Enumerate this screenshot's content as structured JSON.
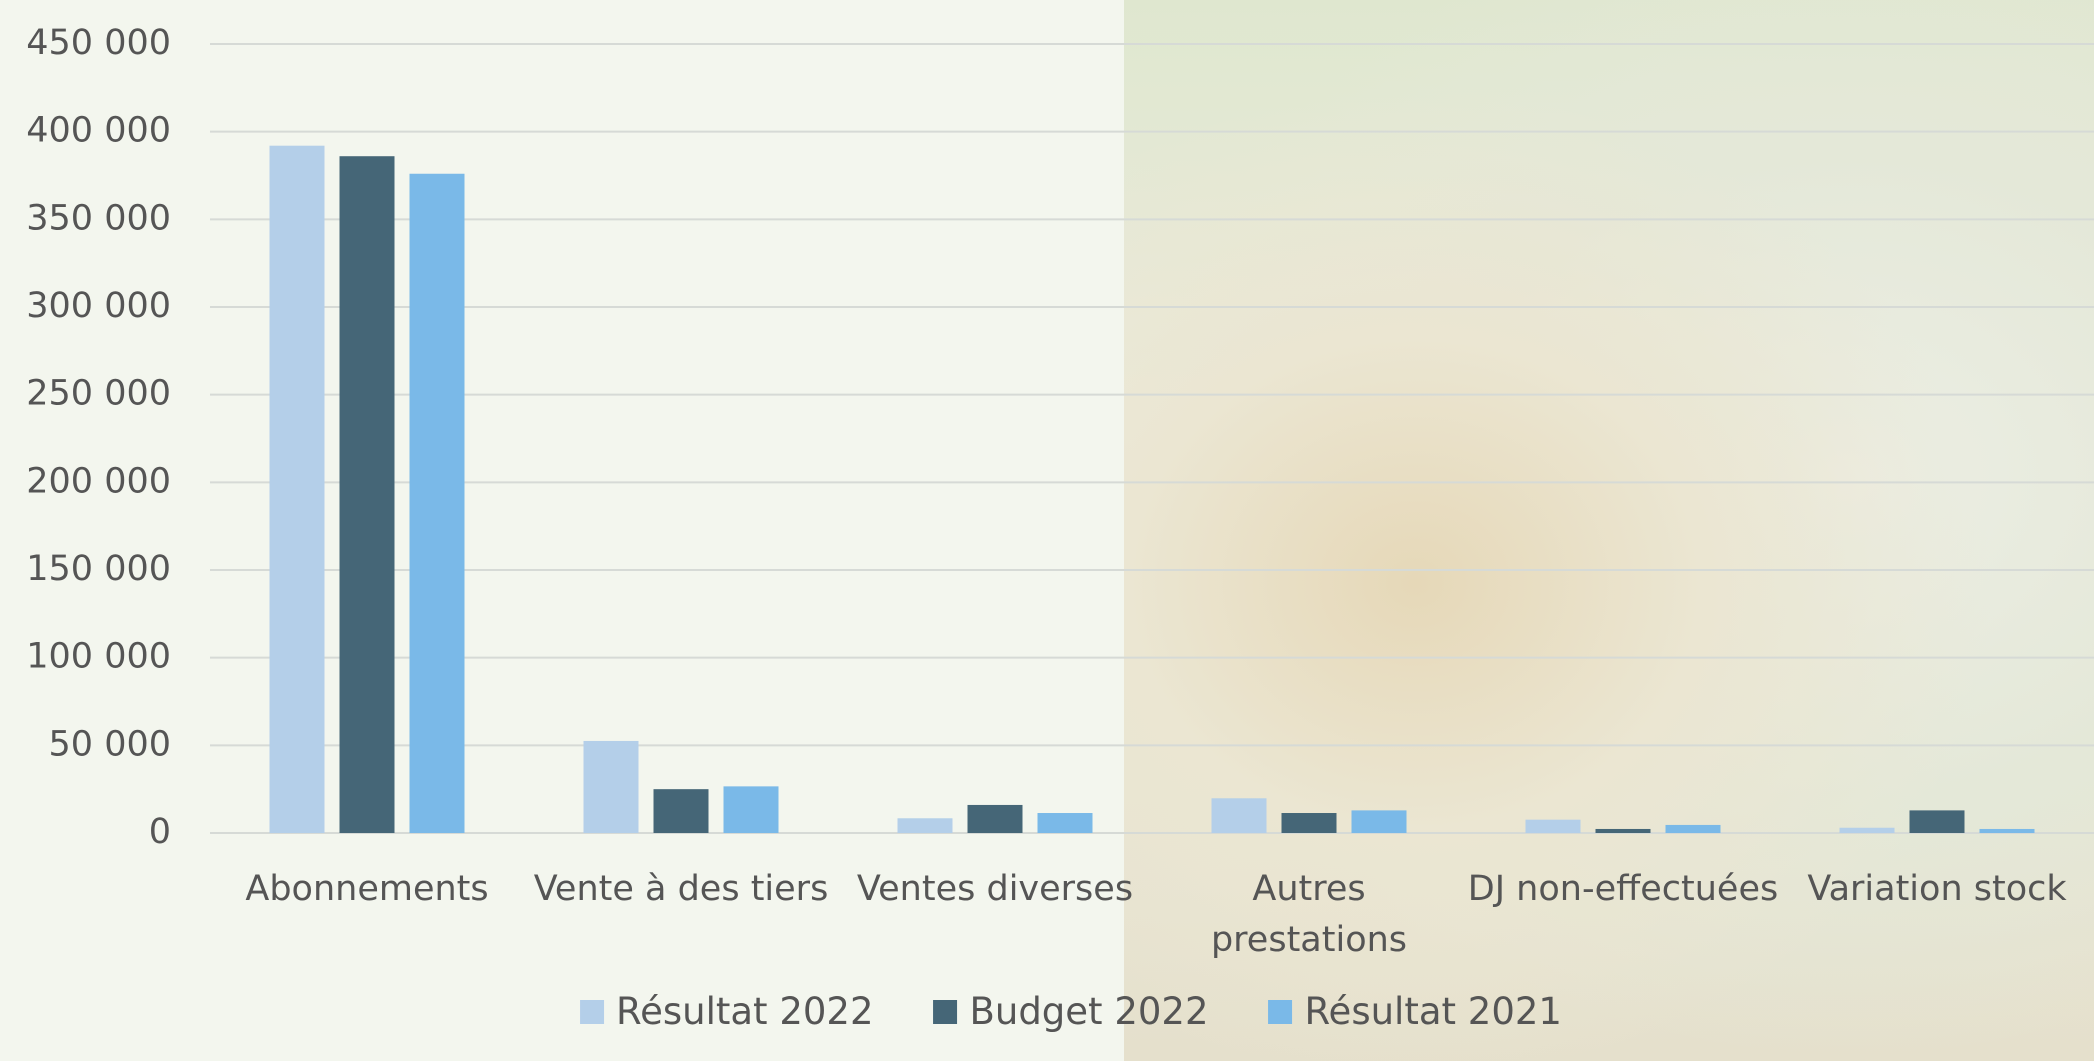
{
  "chart_data": {
    "type": "bar",
    "categories": [
      "Abonnements",
      "Vente à des tiers",
      "Ventes diverses",
      "Autres prestations",
      "DJ non-effectuées",
      "Variation stock"
    ],
    "series": [
      {
        "name": "Résultat 2022",
        "color": "#b4cfe9",
        "values": [
          392000,
          52500,
          8400,
          19800,
          7600,
          3000
        ]
      },
      {
        "name": "Budget 2022",
        "color": "#456677",
        "values": [
          386000,
          25000,
          16000,
          11400,
          2300,
          12900
        ]
      },
      {
        "name": "Résultat 2021",
        "color": "#7ab9e8",
        "values": [
          376000,
          26600,
          11400,
          12900,
          4600,
          2300
        ]
      }
    ],
    "ylim": [
      0,
      450000
    ],
    "yticks": [
      0,
      {
        "value": 50000,
        "label": "50 000"
      },
      {
        "value": 100000,
        "label": "100 000"
      },
      {
        "value": 150000,
        "label": "150 000"
      },
      {
        "value": 200000,
        "label": "200 000"
      },
      {
        "value": 250000,
        "label": "250 000"
      },
      {
        "value": 300000,
        "label": "300 000"
      },
      {
        "value": 350000,
        "label": "350 000"
      },
      {
        "value": 400000,
        "label": "400 000"
      },
      {
        "value": 450000,
        "label": "450 000"
      }
    ],
    "grid": true
  }
}
